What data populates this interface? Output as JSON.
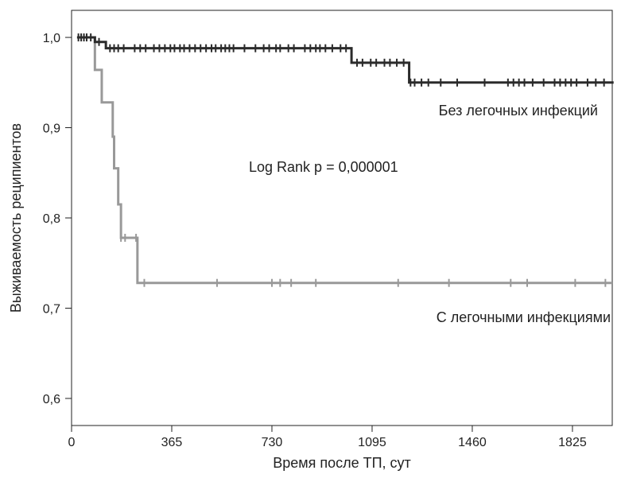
{
  "chart_data": {
    "type": "line",
    "subtype": "kaplan-meier-step",
    "xlabel": "Время после ТП, сут",
    "ylabel": "Выживаемость реципиентов",
    "xlim": [
      0,
      1970
    ],
    "ylim": [
      0.57,
      1.03
    ],
    "x_ticks": [
      0,
      365,
      730,
      1095,
      1460,
      1825
    ],
    "x_tick_labels": [
      "0",
      "365",
      "730",
      "1095",
      "1460",
      "1825"
    ],
    "y_ticks": [
      1.0,
      0.9,
      0.8,
      0.7,
      0.6
    ],
    "y_tick_labels": [
      "1,0",
      "0,9",
      "0,8",
      "0,7",
      "0,6"
    ],
    "grid": false,
    "annotation": "Log Rank p = 0,000001",
    "series": [
      {
        "name": "Без легочных инфекций",
        "color": "#2b2b2b",
        "steps": [
          [
            20,
            1.0
          ],
          [
            85,
            0.995
          ],
          [
            125,
            0.988
          ],
          [
            1020,
            0.972
          ],
          [
            1230,
            0.95
          ],
          [
            1975,
            0.95
          ]
        ],
        "censored": [
          25,
          35,
          45,
          55,
          70,
          100,
          140,
          155,
          170,
          190,
          230,
          250,
          270,
          300,
          320,
          340,
          360,
          375,
          395,
          410,
          430,
          450,
          470,
          490,
          510,
          525,
          545,
          560,
          575,
          590,
          630,
          670,
          700,
          720,
          745,
          760,
          790,
          810,
          850,
          870,
          890,
          905,
          925,
          950,
          980,
          1000,
          1040,
          1060,
          1090,
          1110,
          1140,
          1160,
          1185,
          1210,
          1235,
          1250,
          1275,
          1300,
          1345,
          1405,
          1505,
          1590,
          1610,
          1630,
          1650,
          1680,
          1720,
          1760,
          1780,
          1800,
          1820,
          1840,
          1880,
          1910,
          1940
        ]
      },
      {
        "name": "С легочными инфекциями",
        "color": "#999999",
        "steps": [
          [
            20,
            1.0
          ],
          [
            85,
            0.964
          ],
          [
            110,
            0.928
          ],
          [
            150,
            0.89
          ],
          [
            155,
            0.855
          ],
          [
            170,
            0.815
          ],
          [
            180,
            0.778
          ],
          [
            240,
            0.728
          ],
          [
            1970,
            0.728
          ]
        ],
        "censored": [
          180,
          195,
          235,
          265,
          530,
          730,
          760,
          800,
          890,
          1190,
          1375,
          1600,
          1660,
          1835,
          1945
        ]
      }
    ]
  }
}
